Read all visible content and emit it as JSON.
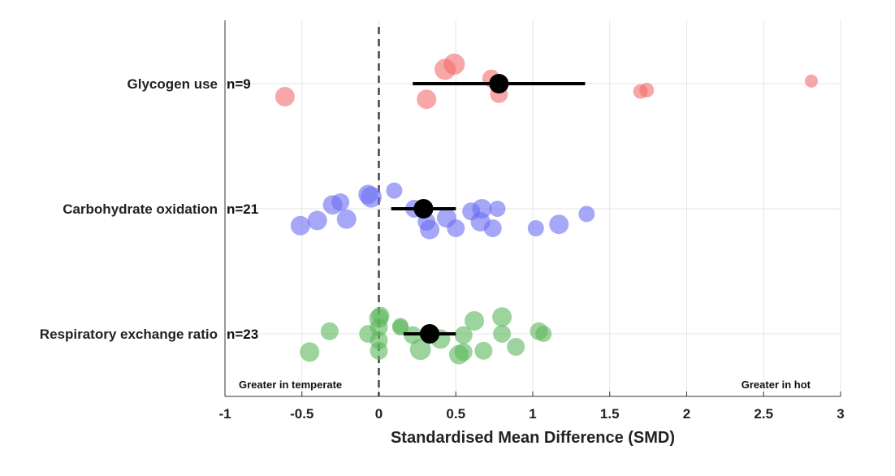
{
  "chart_data": {
    "type": "scatter",
    "title": "",
    "xlabel": "Standardised Mean Difference (SMD)",
    "ylabel": "",
    "xlim": [
      -1,
      3
    ],
    "xticks": [
      -1,
      -0.5,
      0,
      0.5,
      1,
      1.5,
      2,
      2.5,
      3
    ],
    "xtick_labels": [
      "-1",
      "-0.5",
      "0",
      "0.5",
      "1",
      "1.5",
      "2",
      "2.5",
      "3"
    ],
    "grid": true,
    "reference_line": 0,
    "annotations": {
      "left": "Greater in temperate",
      "right": "Greater in hot"
    },
    "series": [
      {
        "label": "Glycogen use",
        "n_label": "n=9",
        "color": "#f26d6d",
        "summary": {
          "estimate": 0.78,
          "ci": [
            0.22,
            1.34
          ]
        },
        "points": [
          {
            "x": -0.61,
            "offset": -0.5,
            "size": 12
          },
          {
            "x": 0.31,
            "offset": -0.6,
            "size": 12
          },
          {
            "x": 0.43,
            "offset": 0.55,
            "size": 13
          },
          {
            "x": 0.49,
            "offset": 0.75,
            "size": 13
          },
          {
            "x": 0.73,
            "offset": 0.2,
            "size": 11
          },
          {
            "x": 0.78,
            "offset": -0.4,
            "size": 11
          },
          {
            "x": 1.7,
            "offset": -0.3,
            "size": 9
          },
          {
            "x": 1.74,
            "offset": -0.25,
            "size": 9
          },
          {
            "x": 2.81,
            "offset": 0.1,
            "size": 8
          }
        ]
      },
      {
        "label": "Carbohydrate oxidation",
        "n_label": "n=21",
        "color": "#6b6ef2",
        "summary": {
          "estimate": 0.29,
          "ci": [
            0.08,
            0.5
          ]
        },
        "points": [
          {
            "x": -0.51,
            "offset": -0.65,
            "size": 12
          },
          {
            "x": -0.4,
            "offset": -0.45,
            "size": 12
          },
          {
            "x": -0.3,
            "offset": 0.15,
            "size": 12
          },
          {
            "x": -0.25,
            "offset": 0.25,
            "size": 11
          },
          {
            "x": -0.21,
            "offset": -0.4,
            "size": 12
          },
          {
            "x": -0.07,
            "offset": 0.55,
            "size": 12
          },
          {
            "x": -0.05,
            "offset": 0.45,
            "size": 13
          },
          {
            "x": 0.1,
            "offset": 0.7,
            "size": 10
          },
          {
            "x": 0.23,
            "offset": 0.0,
            "size": 11
          },
          {
            "x": 0.33,
            "offset": -0.8,
            "size": 12
          },
          {
            "x": 0.31,
            "offset": -0.5,
            "size": 11
          },
          {
            "x": 0.44,
            "offset": -0.35,
            "size": 12
          },
          {
            "x": 0.5,
            "offset": -0.75,
            "size": 11
          },
          {
            "x": 0.6,
            "offset": -0.1,
            "size": 11
          },
          {
            "x": 0.67,
            "offset": 0.0,
            "size": 12
          },
          {
            "x": 0.66,
            "offset": -0.5,
            "size": 12
          },
          {
            "x": 0.74,
            "offset": -0.75,
            "size": 11
          },
          {
            "x": 0.77,
            "offset": 0.0,
            "size": 10
          },
          {
            "x": 1.02,
            "offset": -0.75,
            "size": 10
          },
          {
            "x": 1.17,
            "offset": -0.6,
            "size": 12
          },
          {
            "x": 1.35,
            "offset": -0.2,
            "size": 10
          }
        ]
      },
      {
        "label": "Respiratory exchange ratio",
        "n_label": "n=23",
        "color": "#5cb85c",
        "summary": {
          "estimate": 0.33,
          "ci": [
            0.16,
            0.5
          ]
        },
        "points": [
          {
            "x": -0.45,
            "offset": -0.7,
            "size": 12
          },
          {
            "x": -0.32,
            "offset": 0.1,
            "size": 11
          },
          {
            "x": -0.07,
            "offset": 0.0,
            "size": 11
          },
          {
            "x": 0.0,
            "offset": 0.6,
            "size": 12
          },
          {
            "x": 0.01,
            "offset": 0.7,
            "size": 11
          },
          {
            "x": 0.0,
            "offset": 0.25,
            "size": 11
          },
          {
            "x": 0.0,
            "offset": -0.25,
            "size": 11
          },
          {
            "x": 0.0,
            "offset": -0.65,
            "size": 11
          },
          {
            "x": 0.14,
            "offset": 0.3,
            "size": 10
          },
          {
            "x": 0.14,
            "offset": 0.25,
            "size": 10
          },
          {
            "x": 0.27,
            "offset": -0.6,
            "size": 13
          },
          {
            "x": 0.4,
            "offset": -0.2,
            "size": 12
          },
          {
            "x": 0.52,
            "offset": -0.8,
            "size": 12
          },
          {
            "x": 0.55,
            "offset": -0.7,
            "size": 11
          },
          {
            "x": 0.55,
            "offset": -0.05,
            "size": 11
          },
          {
            "x": 0.62,
            "offset": 0.5,
            "size": 12
          },
          {
            "x": 0.68,
            "offset": -0.65,
            "size": 11
          },
          {
            "x": 0.8,
            "offset": 0.65,
            "size": 12
          },
          {
            "x": 0.8,
            "offset": 0.0,
            "size": 11
          },
          {
            "x": 0.89,
            "offset": -0.5,
            "size": 11
          },
          {
            "x": 1.04,
            "offset": 0.1,
            "size": 11
          },
          {
            "x": 1.07,
            "offset": 0.0,
            "size": 10
          },
          {
            "x": 0.22,
            "offset": -0.05,
            "size": 11
          }
        ]
      }
    ]
  }
}
